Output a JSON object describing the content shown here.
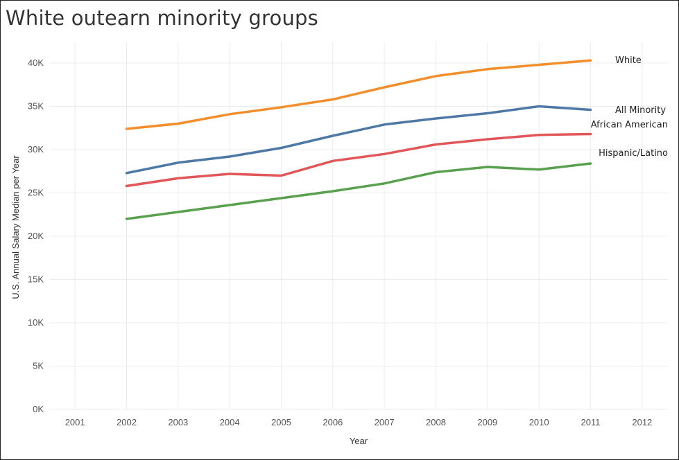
{
  "chart_data": {
    "type": "line",
    "title": "White outearn minority groups",
    "xlabel": "Year",
    "ylabel": "U.S. Annual Salary Median per Year",
    "x_ticks": [
      "2001",
      "2002",
      "2003",
      "2004",
      "2005",
      "2006",
      "2007",
      "2008",
      "2009",
      "2010",
      "2011",
      "2012"
    ],
    "y_ticks": [
      "0K",
      "5K",
      "10K",
      "15K",
      "20K",
      "25K",
      "30K",
      "35K",
      "40K"
    ],
    "xlim": [
      2001,
      2012
    ],
    "ylim": [
      0,
      42000
    ],
    "grid": true,
    "legend": "none (series labelled at line ends)",
    "x": [
      2002,
      2003,
      2004,
      2005,
      2006,
      2007,
      2008,
      2009,
      2010,
      2011
    ],
    "series": [
      {
        "name": "White",
        "color": "#f28e2b",
        "values": [
          32400,
          33000,
          34100,
          34900,
          35800,
          37200,
          38500,
          39300,
          39800,
          40300
        ]
      },
      {
        "name": "All Minority",
        "color": "#4e79a7",
        "values": [
          27300,
          28500,
          29200,
          30200,
          31600,
          32900,
          33600,
          34200,
          35000,
          34600
        ]
      },
      {
        "name": "African American",
        "color": "#e15759",
        "values": [
          25800,
          26700,
          27200,
          27000,
          28700,
          29500,
          30600,
          31200,
          31700,
          31800
        ]
      },
      {
        "name": "Hispanic/Latino",
        "color": "#59a14f",
        "values": [
          22000,
          22800,
          23600,
          24400,
          25200,
          26100,
          27400,
          28000,
          27700,
          28400
        ]
      }
    ]
  }
}
